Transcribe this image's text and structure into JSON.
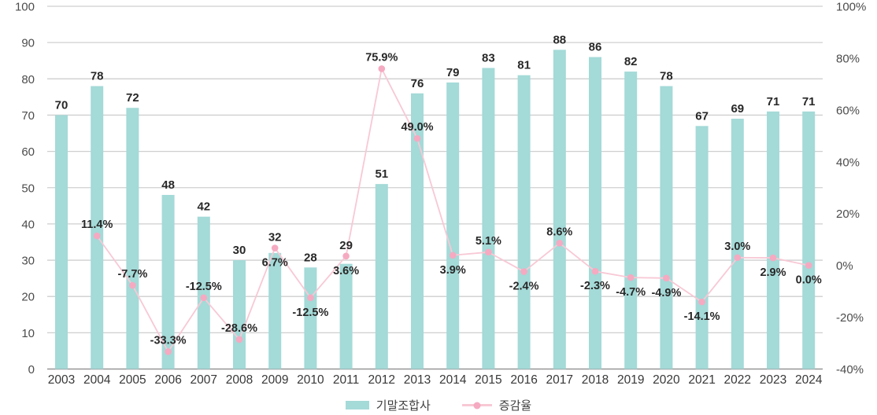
{
  "chart_data": {
    "type": "bar+line combo",
    "title": "",
    "categories": [
      "2003",
      "2004",
      "2005",
      "2006",
      "2007",
      "2008",
      "2009",
      "2010",
      "2011",
      "2012",
      "2013",
      "2014",
      "2015",
      "2016",
      "2017",
      "2018",
      "2019",
      "2020",
      "2021",
      "2022",
      "2023",
      "2024"
    ],
    "series": [
      {
        "name": "기말조합사",
        "type": "bar",
        "axis": "left",
        "values": [
          70,
          78,
          72,
          48,
          42,
          30,
          32,
          28,
          29,
          51,
          76,
          79,
          83,
          81,
          88,
          86,
          82,
          78,
          67,
          69,
          71,
          71
        ]
      },
      {
        "name": "증감율",
        "type": "line",
        "axis": "right",
        "values": [
          null,
          11.4,
          -7.7,
          -33.3,
          -12.5,
          -28.6,
          6.7,
          -12.5,
          3.6,
          75.9,
          49.0,
          3.9,
          5.1,
          -2.4,
          8.6,
          -2.3,
          -4.7,
          -4.9,
          -14.1,
          3.0,
          2.9,
          0.0
        ],
        "labels": [
          "",
          "11.4%",
          "-7.7%",
          "-33.3%",
          "-12.5%",
          "-28.6%",
          "6.7%",
          "-12.5%",
          "3.6%",
          "75.9%",
          "49.0%",
          "3.9%",
          "5.1%",
          "-2.4%",
          "8.6%",
          "-2.3%",
          "-4.7%",
          "-4.9%",
          "-14.1%",
          "3.0%",
          "2.9%",
          "0.0%"
        ],
        "label_positions": [
          "",
          "above",
          "above",
          "above",
          "above",
          "above",
          "below",
          "below",
          "below",
          "above",
          "above",
          "below",
          "above",
          "below",
          "above",
          "below",
          "below",
          "below",
          "below",
          "above",
          "below",
          "below"
        ]
      }
    ],
    "axes": {
      "left": {
        "min": 0,
        "max": 100,
        "step": 10,
        "ticks": [
          "0",
          "10",
          "20",
          "30",
          "40",
          "50",
          "60",
          "70",
          "80",
          "90",
          "100"
        ]
      },
      "right": {
        "min": -40,
        "max": 100,
        "step": 20,
        "ticks": [
          "-40%",
          "-20%",
          "0%",
          "20%",
          "40%",
          "60%",
          "80%",
          "100%"
        ]
      }
    },
    "grid": true,
    "legend_position": "bottom",
    "style": {
      "bar_color": "#a4dad8",
      "line_color": "#f8c8d5",
      "marker_color": "#f5aac1",
      "grid_color": "#cfcfcf",
      "axis_line_color": "#969696",
      "tick_text_color": "#4c4c4c",
      "category_text_color": "#383838",
      "data_label_color": "#282828"
    }
  }
}
